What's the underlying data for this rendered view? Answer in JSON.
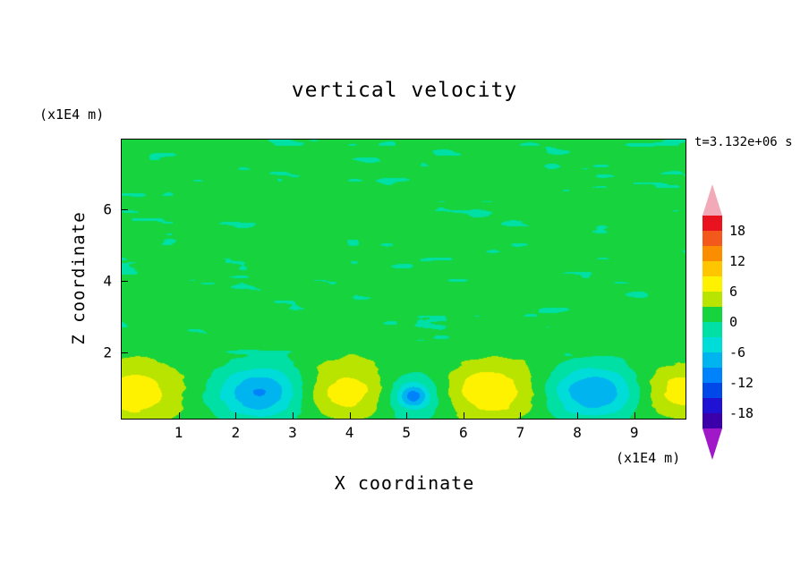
{
  "chart_data": {
    "type": "heatmap",
    "title": "vertical velocity",
    "time_label": "t=3.132e+06 s",
    "x_axis": {
      "label": "X coordinate",
      "unit_label": "(x1E4 m)",
      "ticks": [
        1,
        2,
        3,
        4,
        5,
        6,
        7,
        8,
        9
      ],
      "min": 0,
      "max": 9.9
    },
    "y_axis": {
      "label": "Z coordinate",
      "unit_label": "(x1E4 m)",
      "ticks": [
        2,
        4,
        6
      ],
      "min": 0.15,
      "max": 7.95
    },
    "colorbar": {
      "tick_labels": [
        18,
        12,
        6,
        0,
        -6,
        -12,
        -18
      ],
      "top_value": 21,
      "level_step": 3,
      "colors": [
        "#e8131f",
        "#f4591c",
        "#fb8e00",
        "#ffc600",
        "#fff200",
        "#b8e400",
        "#17d33e",
        "#00dfa4",
        "#00dcd8",
        "#00b4f0",
        "#0082fa",
        "#0048e8",
        "#2012d2",
        "#3c00aa"
      ],
      "over_arrow_color": "#f2aab8",
      "under_arrow_color": "#a018c8"
    },
    "field": {
      "description": "vertical velocity field: near-zero speckled background with alternating updraft/downdraft cells near the lower boundary",
      "base_value": 1.0,
      "noise": {
        "seed": 7,
        "amplitude": 1.9,
        "clamp_min": -2.0,
        "clamp_max": 1.9,
        "x_scale": 0.7,
        "z_scale": 0.2,
        "taper_z0": 1.5,
        "taper_z1": 2.4,
        "taper_floor": 0.35
      },
      "blobs": [
        {
          "x": 0.22,
          "z": 0.85,
          "amp": 7.4,
          "sx": 0.6,
          "sz": 0.58
        },
        {
          "x": 2.42,
          "z": 0.88,
          "amp": -10.6,
          "sx": 0.52,
          "sz": 0.5
        },
        {
          "x": 4.0,
          "z": 0.9,
          "amp": 7.2,
          "sx": 0.58,
          "sz": 0.55
        },
        {
          "x": 5.1,
          "z": 0.8,
          "amp": -5.2,
          "sx": 0.5,
          "sz": 0.45
        },
        {
          "x": 5.12,
          "z": 0.78,
          "amp": -8.5,
          "sx": 0.18,
          "sz": 0.22
        },
        {
          "x": 6.45,
          "z": 0.9,
          "amp": 7.8,
          "sx": 0.62,
          "sz": 0.58
        },
        {
          "x": 8.3,
          "z": 0.88,
          "amp": -10.2,
          "sx": 0.55,
          "sz": 0.5
        },
        {
          "x": 9.85,
          "z": 0.9,
          "amp": 6.8,
          "sx": 0.55,
          "sz": 0.52
        }
      ]
    }
  }
}
